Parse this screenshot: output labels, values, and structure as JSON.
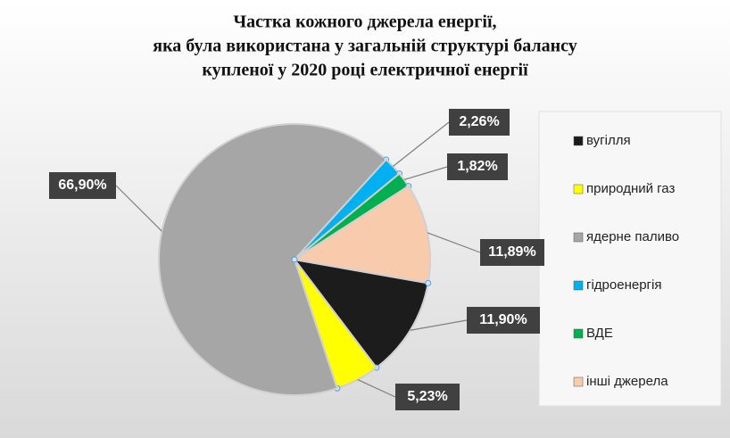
{
  "chart_data": {
    "type": "pie",
    "title": [
      "Частка кожного джерела енергії,",
      "яка була використана у загальній структурі балансу",
      "купленої у 2020 році електричної енергії"
    ],
    "categories": [
      "вугілля",
      "природний газ",
      "ядерне паливо",
      "гідроенергія",
      "ВДЕ",
      "інші джерела"
    ],
    "values": [
      11.9,
      5.23,
      66.9,
      2.26,
      1.82,
      11.89
    ],
    "value_labels": [
      "11,90%",
      "5,23%",
      "66,90%",
      "2,26%",
      "1,82%",
      "11,89%"
    ],
    "colors": [
      "#1c1c1c",
      "#ffff00",
      "#a6a6a6",
      "#00b0f0",
      "#00b050",
      "#f8cbad"
    ]
  }
}
